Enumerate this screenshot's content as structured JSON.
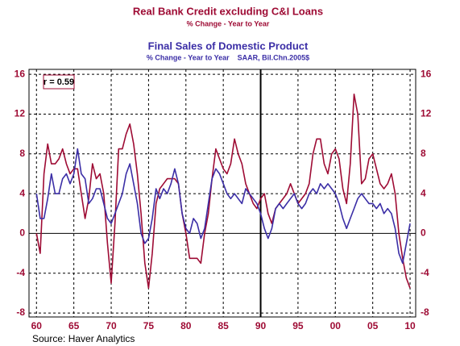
{
  "chart_data": {
    "type": "line",
    "title": "Real Bank Credit excluding C&I Loans",
    "subtitle": "% Change - Year to Year",
    "title2": "Final Sales of Domestic Product",
    "subtitle2": "% Change - Year to Year    SAAR, Bil.Chn.2005$",
    "annotation": "r = 0.59",
    "source": "Source: Haver Analytics",
    "x": [
      1960,
      1960.5,
      1961,
      1961.5,
      1962,
      1962.5,
      1963,
      1963.5,
      1964,
      1964.5,
      1965,
      1965.5,
      1966,
      1966.5,
      1967,
      1967.5,
      1968,
      1968.5,
      1969,
      1969.5,
      1970,
      1970.5,
      1971,
      1971.5,
      1972,
      1972.5,
      1973,
      1973.5,
      1974,
      1974.5,
      1975,
      1975.5,
      1976,
      1976.5,
      1977,
      1977.5,
      1978,
      1978.5,
      1979,
      1979.5,
      1980,
      1980.5,
      1981,
      1981.5,
      1982,
      1982.5,
      1983,
      1983.5,
      1984,
      1984.5,
      1985,
      1985.5,
      1986,
      1986.5,
      1987,
      1987.5,
      1988,
      1988.5,
      1989,
      1989.5,
      1990,
      1990.5,
      1991,
      1991.5,
      1992,
      1992.5,
      1993,
      1993.5,
      1994,
      1994.5,
      1995,
      1995.5,
      1996,
      1996.5,
      1997,
      1997.5,
      1998,
      1998.5,
      1999,
      1999.5,
      2000,
      2000.5,
      2001,
      2001.5,
      2002,
      2002.5,
      2003,
      2003.5,
      2004,
      2004.5,
      2005,
      2005.5,
      2006,
      2006.5,
      2007,
      2007.5,
      2008,
      2008.5,
      2009,
      2009.5,
      2010
    ],
    "series": [
      {
        "name": "Real Bank Credit excluding C&I Loans",
        "color": "#9e0b34",
        "values": [
          0,
          -2,
          6,
          9,
          7,
          7,
          7.5,
          8.5,
          7,
          6,
          6.5,
          6.5,
          4,
          1.5,
          3.5,
          7,
          5.5,
          6,
          4,
          -1,
          -5,
          1,
          8.5,
          8.5,
          10,
          11,
          9,
          6,
          2,
          -3,
          -5.5,
          -2,
          3,
          4.5,
          5,
          5.5,
          5.5,
          5.5,
          5,
          2,
          0,
          -2.5,
          -2.5,
          -2.5,
          -3,
          0,
          2,
          5.5,
          8.5,
          7.5,
          6.5,
          6,
          7,
          9.5,
          8,
          7,
          5,
          4,
          3,
          2.5,
          3.5,
          4,
          2,
          1,
          2.5,
          3,
          3.5,
          4,
          5,
          4,
          3,
          3.5,
          4,
          5,
          8,
          9.5,
          9.5,
          7,
          6,
          8,
          8.5,
          7.5,
          4.5,
          3,
          7,
          14,
          12,
          5,
          5.5,
          7.5,
          8,
          6.5,
          5,
          4.5,
          5,
          6,
          4,
          0,
          -2.5,
          -4.5,
          -5.5
        ]
      },
      {
        "name": "Final Sales of Domestic Product",
        "color": "#3b2ea6",
        "values": [
          4,
          1.5,
          1.5,
          3.5,
          6,
          4,
          4,
          5.5,
          6,
          5,
          6,
          8.5,
          6,
          5.5,
          3,
          3.5,
          4.5,
          4.5,
          3,
          1.5,
          1,
          2,
          3,
          4,
          6,
          7,
          5,
          3,
          0,
          -1,
          -0.5,
          1.5,
          4.5,
          3.5,
          4.5,
          4,
          5,
          6.5,
          5,
          2,
          0.5,
          0,
          1.5,
          1,
          -0.5,
          0.5,
          3,
          5.5,
          6.5,
          6,
          5,
          4,
          3.5,
          4,
          3.5,
          3,
          4.5,
          4,
          3.5,
          3,
          2,
          0.5,
          -0.5,
          0.5,
          2.5,
          3,
          2.5,
          3,
          3.5,
          4,
          3,
          2.5,
          3,
          4,
          4.5,
          4,
          5,
          4.5,
          5,
          4.5,
          4,
          3,
          1.5,
          0.5,
          1.5,
          2.5,
          3.5,
          4,
          3.5,
          3,
          3,
          2.5,
          3,
          2,
          2.5,
          2,
          0.5,
          -2,
          -3,
          -1,
          1
        ]
      }
    ],
    "xlim": [
      1959,
      2010.75
    ],
    "xticks": [
      {
        "value": 1960,
        "label": "60"
      },
      {
        "value": 1965,
        "label": "65"
      },
      {
        "value": 1970,
        "label": "70"
      },
      {
        "value": 1975,
        "label": "75"
      },
      {
        "value": 1980,
        "label": "80"
      },
      {
        "value": 1985,
        "label": "85"
      },
      {
        "value": 1990,
        "label": "90"
      },
      {
        "value": 1995,
        "label": "95"
      },
      {
        "value": 2000,
        "label": "00"
      },
      {
        "value": 2005,
        "label": "05"
      },
      {
        "value": 2010,
        "label": "10"
      }
    ],
    "ylim": [
      -8.4,
      16.5
    ],
    "yticks": [
      -8,
      -4,
      0,
      4,
      8,
      12,
      16
    ],
    "y2lim": [
      -8.4,
      16.5
    ],
    "y2ticks": [
      -8,
      -4,
      0,
      4,
      8,
      12,
      16
    ],
    "vline": 1990,
    "grid": true
  }
}
